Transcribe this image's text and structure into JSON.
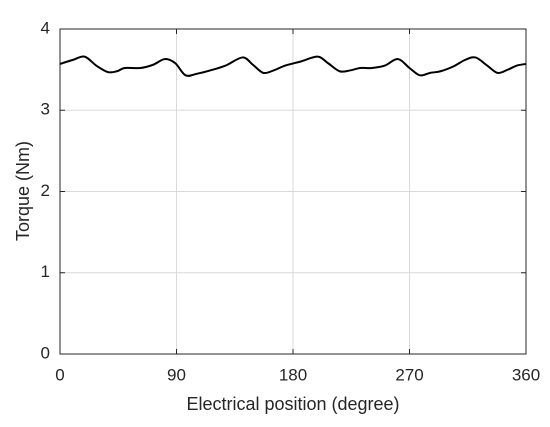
{
  "chart_data": {
    "type": "line",
    "xlabel": "Electrical position (degree)",
    "ylabel": "Torque (Nm)",
    "x": [
      0,
      10,
      19,
      28,
      37,
      44,
      50,
      62,
      72,
      81,
      89,
      97,
      106,
      116,
      128,
      141,
      149,
      157,
      165,
      174,
      186,
      199,
      207,
      216,
      224,
      232,
      241,
      251,
      261,
      270,
      278,
      286,
      294,
      304,
      313,
      321,
      330,
      338,
      346,
      353,
      360
    ],
    "values": [
      3.57,
      3.62,
      3.66,
      3.55,
      3.47,
      3.48,
      3.52,
      3.52,
      3.56,
      3.63,
      3.58,
      3.43,
      3.45,
      3.49,
      3.55,
      3.65,
      3.56,
      3.46,
      3.49,
      3.55,
      3.6,
      3.66,
      3.58,
      3.48,
      3.49,
      3.52,
      3.52,
      3.55,
      3.63,
      3.52,
      3.43,
      3.46,
      3.48,
      3.54,
      3.62,
      3.65,
      3.55,
      3.46,
      3.5,
      3.55,
      3.57
    ],
    "color": "#000000",
    "xlim": [
      0,
      360
    ],
    "xticks": [
      0,
      90,
      180,
      270,
      360
    ],
    "ylim": [
      0,
      4
    ],
    "yticks": [
      0,
      1,
      2,
      3,
      4
    ],
    "grid": true
  }
}
